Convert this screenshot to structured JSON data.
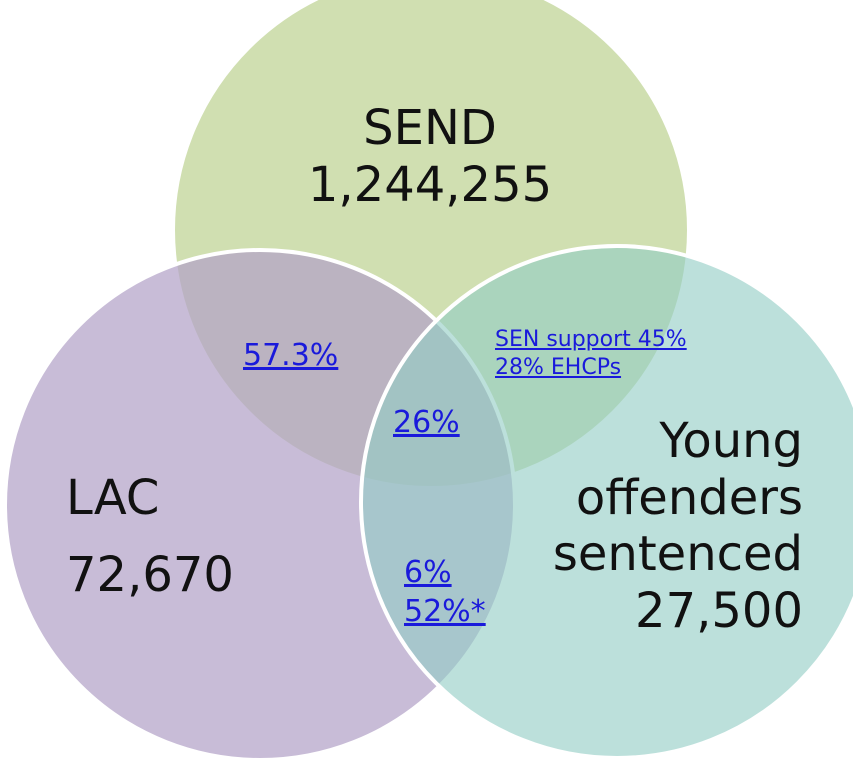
{
  "colors": {
    "send_circle": "#c3d69b",
    "lac_circle": "#b3a2c7",
    "yo_circle": "#93cdc5",
    "circle_stroke": "#ffffff",
    "link_text": "#1a1adb",
    "label_text": "#111111"
  },
  "sets": {
    "send": {
      "name": "SEND",
      "count": "1,244,255"
    },
    "lac": {
      "name": "LAC",
      "count": "72,670"
    },
    "young_offenders": {
      "line1": "Young",
      "line2": "offenders",
      "line3": "sentenced",
      "count": "27,500"
    }
  },
  "overlaps": {
    "send_lac": "57.3%",
    "send_yo_line1": "SEN support 45%",
    "send_yo_line2": "28%  EHCPs",
    "all_three": "26%",
    "lac_yo_line1": "6%",
    "lac_yo_line2": "52%*"
  }
}
